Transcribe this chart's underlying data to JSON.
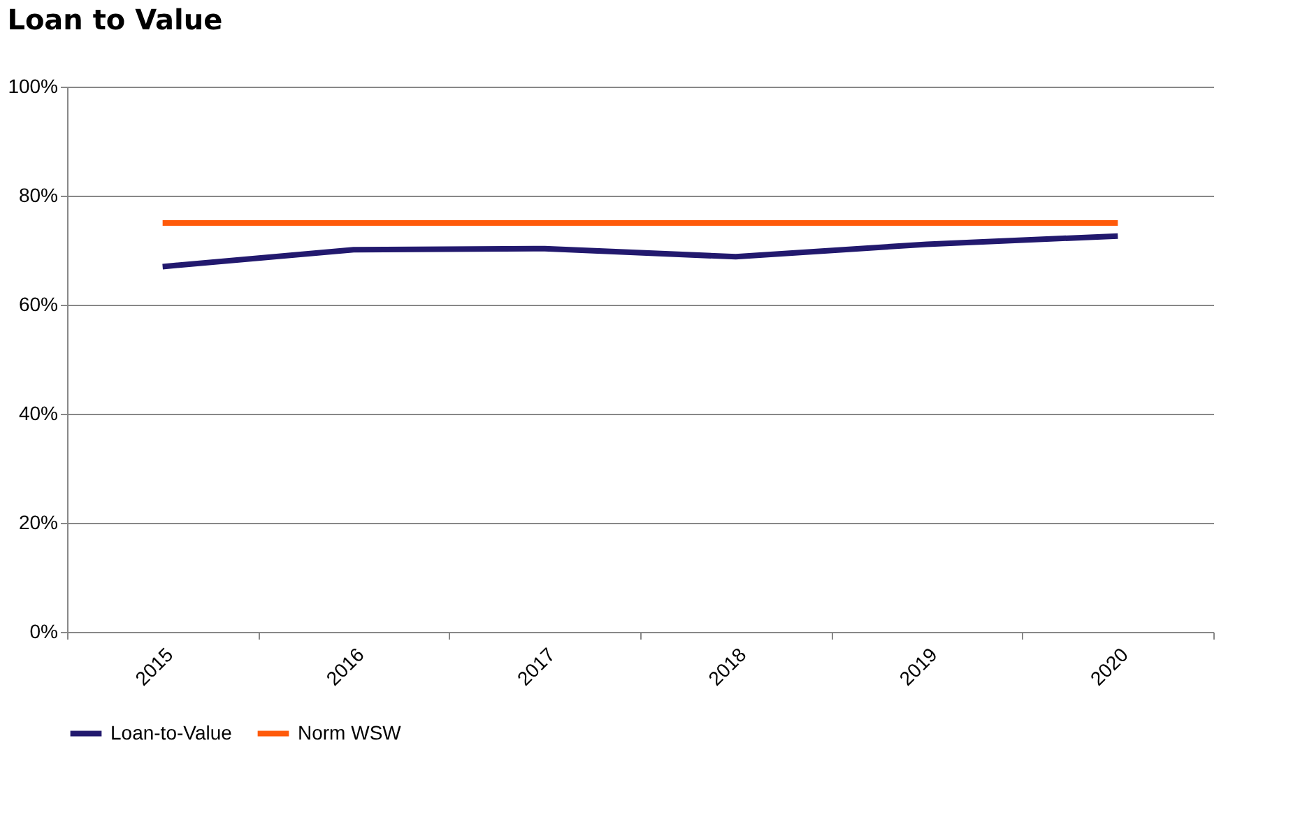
{
  "chart_data": {
    "type": "line",
    "title": "Loan to Value",
    "categories": [
      "2015",
      "2016",
      "2017",
      "2018",
      "2019",
      "2020"
    ],
    "series": [
      {
        "name": "Loan-to-Value",
        "color": "#22196e",
        "values": [
          67,
          70.1,
          70.3,
          68.8,
          71.1,
          72.6
        ]
      },
      {
        "name": "Norm WSW",
        "color": "#ff5a0a",
        "values": [
          75,
          75,
          75,
          75,
          75,
          75
        ]
      }
    ],
    "ylim": [
      0,
      100
    ],
    "yticks": [
      {
        "value": 0,
        "label": "0%"
      },
      {
        "value": 20,
        "label": "20%"
      },
      {
        "value": 40,
        "label": "40%"
      },
      {
        "value": 60,
        "label": "60%"
      },
      {
        "value": 80,
        "label": "80%"
      },
      {
        "value": 100,
        "label": "100%"
      }
    ],
    "grid": "y",
    "legend": "bottom",
    "marker": "none",
    "line_style": "solid"
  }
}
